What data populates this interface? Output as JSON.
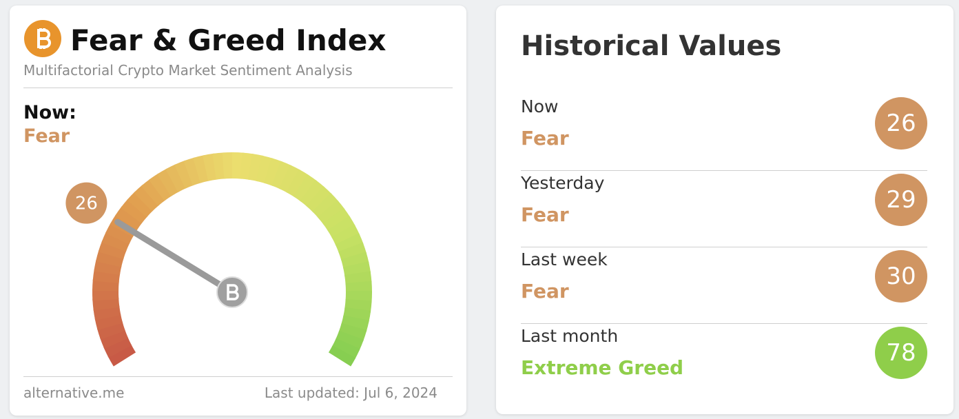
{
  "left": {
    "title": "Fear & Greed Index",
    "subtitle": "Multifactorial Crypto Market Sentiment Analysis",
    "now_label": "Now:",
    "now_class": "Fear",
    "now_color": "#d09562",
    "gauge": {
      "value": 26,
      "range": [
        0,
        100
      ]
    },
    "source": "alternative.me",
    "updated": "Last updated: Jul 6, 2024"
  },
  "right": {
    "title": "Historical Values",
    "rows": [
      {
        "label": "Now",
        "class": "Fear",
        "value": 26,
        "color": "#d09562"
      },
      {
        "label": "Yesterday",
        "class": "Fear",
        "value": 29,
        "color": "#d09562"
      },
      {
        "label": "Last week",
        "class": "Fear",
        "value": 30,
        "color": "#d09562"
      },
      {
        "label": "Last month",
        "class": "Extreme Greed",
        "value": 78,
        "color": "#8fce4a"
      }
    ]
  }
}
